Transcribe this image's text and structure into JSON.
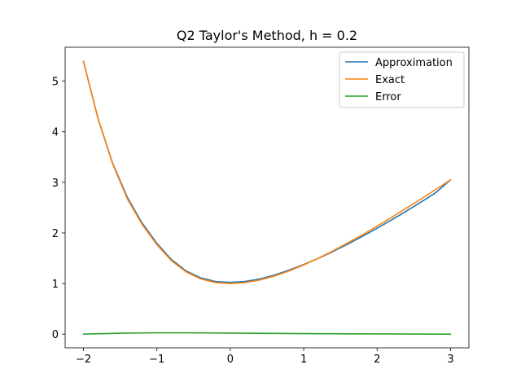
{
  "chart_data": {
    "type": "line",
    "title": "Q2 Taylor's Method, h = 0.2",
    "xlabel": "",
    "ylabel": "",
    "xlim": [
      -2.25,
      3.25
    ],
    "ylim": [
      -0.27,
      5.67
    ],
    "xticks": [
      -2,
      -1,
      0,
      1,
      2,
      3
    ],
    "yticks": [
      0,
      1,
      2,
      3,
      4,
      5
    ],
    "legend_position": "top-right",
    "grid": false,
    "x": [
      -2.0,
      -1.8,
      -1.6,
      -1.4,
      -1.2,
      -1.0,
      -0.8,
      -0.6,
      -0.4,
      -0.2,
      0.0,
      0.2,
      0.4,
      0.6,
      0.8,
      1.0,
      1.2,
      1.4,
      1.6,
      1.8,
      2.0,
      2.2,
      2.4,
      2.6,
      2.8,
      3.0
    ],
    "series": [
      {
        "name": "Approximation",
        "color": "#1f77b4",
        "values": [
          5.389,
          4.25,
          3.367,
          2.696,
          2.193,
          1.794,
          1.472,
          1.247,
          1.11,
          1.04,
          1.023,
          1.042,
          1.09,
          1.167,
          1.265,
          1.376,
          1.499,
          1.634,
          1.779,
          1.932,
          2.093,
          2.261,
          2.434,
          2.613,
          2.798,
          3.05
        ]
      },
      {
        "name": "Exact",
        "color": "#ff7f0e",
        "values": [
          5.389,
          4.25,
          3.353,
          2.666,
          2.166,
          1.768,
          1.449,
          1.229,
          1.09,
          1.019,
          1.0,
          1.019,
          1.07,
          1.149,
          1.249,
          1.368,
          1.501,
          1.647,
          1.803,
          1.965,
          2.135,
          2.311,
          2.491,
          2.674,
          2.861,
          3.05
        ]
      },
      {
        "name": "Error",
        "color": "#2ca02c",
        "values": [
          0.0,
          0.008,
          0.014,
          0.02,
          0.024,
          0.026,
          0.027,
          0.026,
          0.025,
          0.023,
          0.021,
          0.019,
          0.017,
          0.015,
          0.013,
          0.011,
          0.009,
          0.008,
          0.007,
          0.006,
          0.005,
          0.004,
          0.003,
          0.002,
          0.001,
          0.0
        ]
      }
    ]
  }
}
